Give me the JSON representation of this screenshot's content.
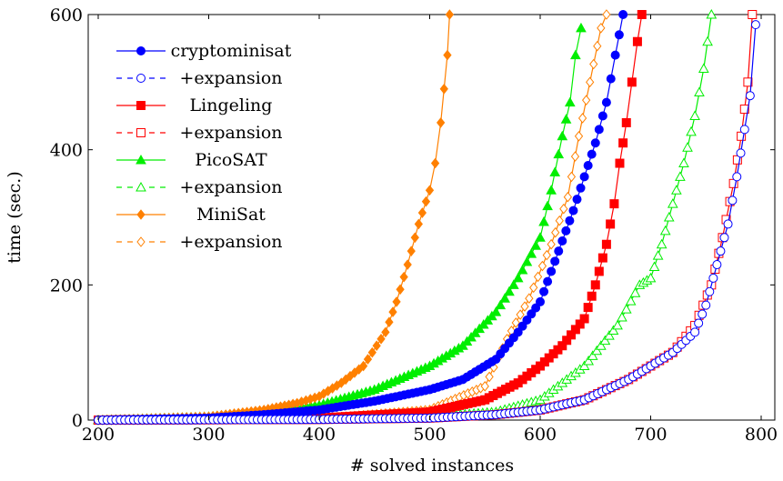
{
  "chart_data": {
    "type": "line",
    "title": "",
    "xlabel": "# solved instances",
    "ylabel": "time (sec.)",
    "xlim": [
      200,
      805
    ],
    "ylim": [
      0,
      600
    ],
    "xticks": [
      200,
      300,
      400,
      500,
      600,
      700,
      800
    ],
    "yticks": [
      0,
      200,
      400,
      600
    ],
    "grid": false,
    "legend_position": "top-left",
    "series": [
      {
        "name": "cryptominisat",
        "color": "#0000ff",
        "marker": "circle",
        "filled": true,
        "dashed": false,
        "x": [
          200,
          300,
          350,
          400,
          450,
          500,
          530,
          560,
          580,
          600,
          610,
          620,
          630,
          640,
          650,
          660,
          668,
          675
        ],
        "y": [
          0,
          3,
          8,
          15,
          28,
          45,
          60,
          90,
          130,
          175,
          220,
          265,
          310,
          360,
          410,
          470,
          540,
          600
        ]
      },
      {
        "name": "+expansion",
        "color": "#0000ff",
        "marker": "circle",
        "filled": false,
        "dashed": true,
        "x": [
          200,
          400,
          500,
          560,
          600,
          640,
          680,
          700,
          720,
          740,
          750,
          760,
          770,
          778,
          785,
          790,
          795
        ],
        "y": [
          0,
          1,
          3,
          8,
          15,
          30,
          60,
          80,
          100,
          130,
          170,
          230,
          290,
          360,
          430,
          480,
          585
        ]
      },
      {
        "name": "Lingeling",
        "color": "#ff0000",
        "marker": "square",
        "filled": true,
        "dashed": false,
        "x": [
          200,
          400,
          500,
          550,
          580,
          600,
          620,
          640,
          650,
          660,
          667,
          672,
          678,
          683,
          688,
          692
        ],
        "y": [
          0,
          3,
          12,
          30,
          55,
          80,
          110,
          150,
          200,
          260,
          320,
          380,
          440,
          500,
          560,
          600
        ]
      },
      {
        "name": "+expansion",
        "color": "#ff0000",
        "marker": "square",
        "filled": false,
        "dashed": true,
        "x": [
          200,
          400,
          500,
          560,
          600,
          640,
          680,
          700,
          720,
          740,
          755,
          765,
          775,
          782,
          788,
          792
        ],
        "y": [
          0,
          1,
          3,
          8,
          15,
          30,
          60,
          80,
          100,
          140,
          200,
          270,
          350,
          420,
          500,
          600
        ]
      },
      {
        "name": "PicoSAT",
        "color": "#00ee00",
        "marker": "triangle",
        "filled": true,
        "dashed": false,
        "x": [
          200,
          300,
          350,
          400,
          450,
          500,
          530,
          560,
          580,
          600,
          610,
          620,
          627,
          632,
          637
        ],
        "y": [
          0,
          5,
          12,
          22,
          45,
          80,
          110,
          160,
          210,
          270,
          340,
          420,
          470,
          540,
          580
        ]
      },
      {
        "name": "+expansion",
        "color": "#00ee00",
        "marker": "triangle",
        "filled": false,
        "dashed": true,
        "x": [
          200,
          400,
          500,
          560,
          600,
          640,
          670,
          690,
          700,
          710,
          720,
          730,
          740,
          748,
          755
        ],
        "y": [
          0,
          1,
          5,
          12,
          30,
          80,
          140,
          200,
          210,
          260,
          320,
          380,
          450,
          520,
          600
        ]
      },
      {
        "name": "MiniSat",
        "color": "#ff8000",
        "marker": "diamond",
        "filled": true,
        "dashed": false,
        "x": [
          200,
          300,
          350,
          380,
          400,
          420,
          440,
          460,
          470,
          480,
          490,
          500,
          505,
          510,
          513,
          516,
          518
        ],
        "y": [
          0,
          5,
          15,
          25,
          35,
          55,
          80,
          130,
          175,
          230,
          290,
          340,
          380,
          440,
          490,
          540,
          600
        ]
      },
      {
        "name": "+expansion",
        "color": "#ff8000",
        "marker": "diamond",
        "filled": false,
        "dashed": true,
        "x": [
          200,
          400,
          500,
          550,
          570,
          590,
          610,
          625,
          635,
          645,
          655,
          660
        ],
        "y": [
          0,
          2,
          15,
          50,
          120,
          180,
          260,
          330,
          420,
          500,
          580,
          600
        ]
      }
    ]
  }
}
